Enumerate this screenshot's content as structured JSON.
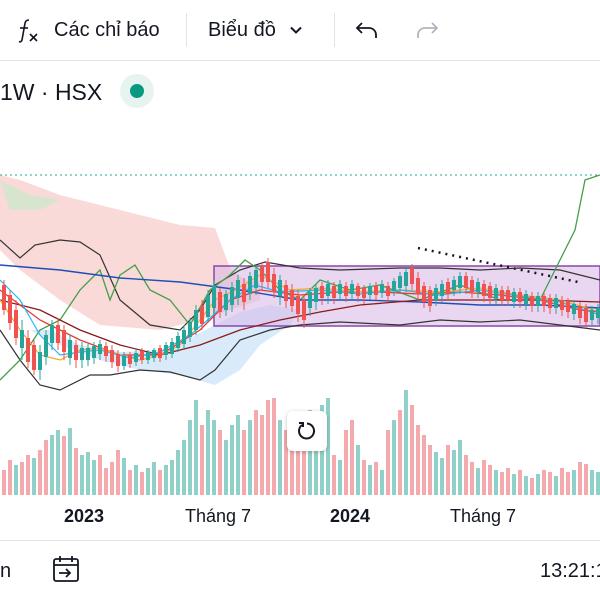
{
  "toolbar": {
    "indicators_label": "Các chỉ báo",
    "chart_menu_label": "Biểu đồ"
  },
  "symbol": {
    "text": "1W · HSX"
  },
  "x_axis": {
    "labels": [
      "2023",
      "Tháng 7",
      "2024",
      "Tháng 7"
    ]
  },
  "bottom": {
    "left_text": "n",
    "time": "13:21:1"
  },
  "colors": {
    "up": "#26a69a",
    "down": "#ef5350",
    "volume_up": "#8fd1c8",
    "volume_down": "#f4a9ad",
    "live": "#089981",
    "range_box": "#9c27b0"
  },
  "icons": {
    "indicators": "fx-icon",
    "dropdown": "chevron-down-icon",
    "undo": "undo-icon",
    "redo": "redo-icon",
    "reset": "reset-icon",
    "goto_date": "calendar-arrow-icon"
  }
}
